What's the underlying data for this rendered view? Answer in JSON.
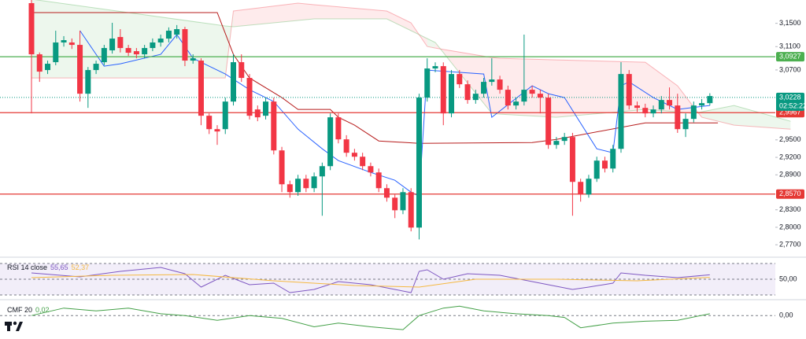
{
  "chart_data": [
    {
      "type": "candlestick",
      "up_color": "#089981",
      "down_color": "#f23645",
      "open": [
        3.1846,
        3.0968,
        3.0698,
        3.0833,
        3.1171,
        3.1171,
        3.113,
        3.0292,
        3.0698,
        3.0833,
        3.1036,
        3.1265,
        3.1076,
        3.1022,
        3.0968,
        3.1076,
        3.1171,
        3.1238,
        3.1306,
        3.14,
        3.086,
        3.086,
        2.9914,
        2.9684,
        2.9684,
        3.0157,
        3.0833,
        3.0563,
        3.0022,
        2.9914,
        3.0157,
        2.9319,
        2.8738,
        2.8603,
        2.8833,
        2.8671,
        2.8873,
        2.9049,
        2.9887,
        2.9509,
        2.9279,
        2.9211,
        2.9049,
        2.8941,
        2.8671,
        2.8508,
        2.8292,
        2.8603,
        2.7995,
        3.0225,
        3.0725,
        3.0765,
        2.9954,
        3.063,
        3.0454,
        3.0184,
        3.0292,
        3.0495,
        3.0536,
        3.036,
        3.009,
        3.0157,
        3.036,
        3.0292,
        3.0225,
        2.9414,
        2.9482,
        2.9549,
        2.8779,
        2.8562,
        2.8833,
        2.9144,
        2.9008,
        2.9346,
        3.063,
        3.009,
        3.0049,
        2.9954,
        3.0022,
        3.0184,
        3.009,
        2.9684,
        2.986,
        3.009,
        3.013
      ],
      "close": [
        3.0968,
        3.0671,
        3.0806,
        3.1171,
        3.1211,
        3.113,
        3.0292,
        3.0698,
        3.0806,
        3.1076,
        3.1238,
        3.1076,
        3.0995,
        3.0968,
        3.1076,
        3.1171,
        3.1238,
        3.1373,
        3.14,
        3.086,
        3.09,
        2.9914,
        2.9684,
        2.9644,
        3.0157,
        3.0833,
        3.0563,
        2.9914,
        2.9887,
        3.0157,
        2.9319,
        2.8738,
        2.8603,
        2.8833,
        2.8671,
        2.8873,
        2.9049,
        2.9887,
        2.9509,
        2.9279,
        2.9211,
        2.9049,
        2.8941,
        2.8671,
        2.8508,
        2.8292,
        2.8603,
        2.7995,
        3.0225,
        3.0725,
        3.0765,
        2.9954,
        3.063,
        3.0454,
        3.0184,
        3.0292,
        3.0495,
        3.0536,
        3.036,
        3.009,
        3.0157,
        3.036,
        3.0292,
        3.0225,
        2.9414,
        2.9482,
        2.9549,
        2.8779,
        2.8562,
        2.8833,
        2.9144,
        2.9008,
        2.9346,
        3.063,
        3.009,
        3.0049,
        2.9954,
        3.0022,
        3.0184,
        3.009,
        2.9684,
        2.986,
        3.009,
        3.013,
        3.0252
      ],
      "high": [
        3.1914,
        3.1,
        3.086,
        3.1373,
        3.128,
        3.124,
        3.1373,
        3.075,
        3.086,
        3.113,
        3.1509,
        3.14,
        3.113,
        3.1076,
        3.113,
        3.124,
        3.1306,
        3.143,
        3.147,
        3.144,
        3.0968,
        3.09,
        2.9954,
        2.9752,
        3.0225,
        3.0968,
        3.0968,
        3.063,
        3.009,
        3.0225,
        3.0225,
        2.938,
        2.88,
        2.89,
        2.89,
        2.894,
        2.911,
        2.9954,
        2.9954,
        2.958,
        2.9346,
        2.9279,
        2.911,
        2.9008,
        2.8738,
        2.8562,
        2.8671,
        2.8671,
        3.0292,
        3.09,
        3.083,
        3.083,
        3.0698,
        3.0698,
        3.052,
        3.036,
        3.0563,
        3.09,
        3.06,
        3.043,
        3.0225,
        3.1306,
        3.043,
        3.036,
        3.0292,
        2.9549,
        2.962,
        2.962,
        2.8833,
        2.89,
        2.9211,
        2.9211,
        2.9414,
        3.0833,
        3.0698,
        3.0157,
        3.012,
        3.009,
        3.0252,
        3.04,
        3.0292,
        2.9954,
        3.0157,
        3.02,
        3.03
      ],
      "low": [
        2.9954,
        3.0495,
        3.063,
        3.078,
        3.11,
        3.106,
        3.0157,
        3.0049,
        3.063,
        3.078,
        3.098,
        3.1,
        3.094,
        3.09,
        3.09,
        3.1022,
        3.11,
        3.1171,
        3.1238,
        3.0765,
        3.0806,
        2.9752,
        2.96,
        2.9414,
        2.96,
        3.009,
        3.0495,
        2.985,
        2.982,
        2.985,
        2.925,
        2.8603,
        2.8508,
        2.854,
        2.8603,
        2.8603,
        2.8198,
        2.898,
        2.944,
        2.921,
        2.9144,
        2.898,
        2.8873,
        2.8603,
        2.844,
        2.8157,
        2.8225,
        2.793,
        2.7792,
        3.0157,
        3.066,
        2.9752,
        2.9887,
        3.039,
        3.012,
        3.012,
        3.0225,
        3.043,
        3.0292,
        3.0022,
        3.0022,
        3.009,
        3.0225,
        2.9954,
        2.9346,
        2.9346,
        2.9414,
        2.8198,
        2.844,
        2.8508,
        2.8779,
        2.8941,
        2.8941,
        2.9279,
        3.0022,
        2.998,
        2.9887,
        2.9887,
        2.9954,
        3.0022,
        2.962,
        2.9549,
        2.98,
        3.0022,
        3.009
      ],
      "ylim": [
        2.75,
        3.19
      ],
      "yticks": [
        {
          "value": 3.15,
          "label": "3,1500"
        },
        {
          "value": 3.11,
          "label": "3,1100"
        },
        {
          "value": 3.07,
          "label": "3,0700"
        },
        {
          "value": 2.95,
          "label": "2,9500"
        },
        {
          "value": 2.92,
          "label": "2,9200"
        },
        {
          "value": 2.89,
          "label": "2,8900"
        },
        {
          "value": 2.83,
          "label": "2,8300"
        },
        {
          "value": 2.8,
          "label": "2,8000"
        },
        {
          "value": 2.77,
          "label": "2,7700"
        }
      ],
      "levels": [
        {
          "value": 3.0927,
          "label": "3,0927",
          "color": "#4caf50"
        },
        {
          "value": 2.9967,
          "label": "2,9967",
          "color": "#e53935"
        },
        {
          "value": 2.857,
          "label": "2,8570",
          "color": "#e53935"
        }
      ],
      "current_price": {
        "value": 3.0228,
        "label": "3,0228",
        "countdown": "02:52:22",
        "color": "#089981"
      },
      "tenkan": {
        "color": "#2962ff",
        "x": [
          6,
          9,
          11,
          16,
          18,
          20,
          24,
          27,
          30,
          33,
          36,
          38,
          42,
          45,
          47,
          48,
          49,
          56,
          57,
          62,
          64,
          66,
          70,
          72,
          73,
          74,
          77,
          80,
          84
        ],
        "values": [
          3.1373,
          3.0765,
          3.0806,
          3.0968,
          3.1306,
          3.09,
          3.063,
          3.036,
          3.0157,
          2.9684,
          2.9346,
          2.9144,
          2.8941,
          2.8806,
          2.8603,
          2.8535,
          3.0698,
          3.063,
          2.9887,
          3.0427,
          3.0292,
          3.0225,
          2.9346,
          2.9279,
          3.0427,
          3.0495,
          3.0225,
          3.0022,
          3.009
        ]
      },
      "kijun": {
        "color": "#b71c1c",
        "x": [
          0,
          23,
          25,
          27,
          31,
          33,
          37,
          38,
          40,
          43,
          48,
          62,
          65,
          76,
          85
        ],
        "values": [
          3.1684,
          3.1684,
          3.0968,
          3.0563,
          3.0225,
          3.0022,
          3.0022,
          2.9887,
          2.9752,
          2.9482,
          2.9441,
          2.9455,
          2.9509,
          2.9792,
          2.9792
        ]
      },
      "cloud": {
        "up_color": "#4caf50",
        "down_color": "#f23645",
        "x": [
          0,
          24,
          25,
          33,
          35,
          44,
          47,
          49,
          50,
          57,
          58,
          65,
          76,
          80,
          82,
          83,
          87,
          94
        ],
        "span_a": [
          3.1914,
          3.1455,
          3.1441,
          3.1549,
          3.1576,
          3.1576,
          3.1373,
          3.1238,
          3.1171,
          2.9954,
          2.9941,
          2.9887,
          3.0022,
          2.9982,
          2.9954,
          2.9982,
          3.009,
          2.9819
        ],
        "span_b": [
          3.0563,
          3.0563,
          3.1711,
          3.1846,
          3.1819,
          3.1711,
          3.1509,
          3.1103,
          3.1076,
          3.0914,
          3.09,
          3.0873,
          3.0833,
          3.0427,
          3.0063,
          2.9887,
          2.9752,
          2.9684
        ]
      }
    },
    {
      "type": "line",
      "title": "RSI 14 close",
      "ylim": [
        24,
        78
      ],
      "yticks": [
        {
          "value": 50,
          "label": "50,00"
        }
      ],
      "band": [
        30,
        70
      ],
      "band_color": "#7e57c2",
      "series": [
        {
          "color": "#7e57c2",
          "value_label": "55,65",
          "x": [
            0,
            6,
            11,
            16,
            19,
            21,
            24,
            27,
            30,
            32,
            35,
            38,
            42,
            45,
            47,
            48,
            49,
            51,
            54,
            58,
            63,
            67,
            69,
            72,
            73,
            76,
            80,
            84
          ],
          "values": [
            58,
            53,
            60,
            65,
            57,
            40,
            55,
            43,
            45,
            33,
            37,
            47,
            43,
            37,
            33,
            60,
            62,
            50,
            57,
            55,
            45,
            37,
            40,
            45,
            58,
            55,
            52,
            55.65
          ]
        },
        {
          "color": "#f5b942",
          "value_label": "52,37",
          "x": [
            0,
            10,
            20,
            30,
            40,
            48,
            55,
            65,
            75,
            84
          ],
          "values": [
            52,
            55,
            56,
            48,
            42,
            40,
            50,
            50,
            48,
            52.37
          ]
        }
      ]
    },
    {
      "type": "line",
      "title": "CMF 20",
      "ylim": [
        -0.25,
        0.17
      ],
      "yticks": [
        {
          "value": 0,
          "label": "0,00"
        }
      ],
      "series": [
        {
          "color": "#43a047",
          "value_label": "0,02",
          "x": [
            0,
            4,
            8,
            12,
            16,
            19,
            23,
            27,
            31,
            35,
            38,
            42,
            46,
            48,
            51,
            53,
            56,
            60,
            64,
            66,
            68,
            72,
            76,
            80,
            84
          ],
          "values": [
            0,
            0.08,
            0.05,
            0.08,
            0.02,
            0,
            -0.05,
            0,
            -0.03,
            -0.12,
            -0.08,
            -0.12,
            -0.15,
            0,
            0.08,
            0.1,
            0.05,
            0.02,
            0,
            -0.02,
            -0.13,
            -0.08,
            -0.06,
            -0.05,
            0.02
          ]
        }
      ]
    }
  ]
}
